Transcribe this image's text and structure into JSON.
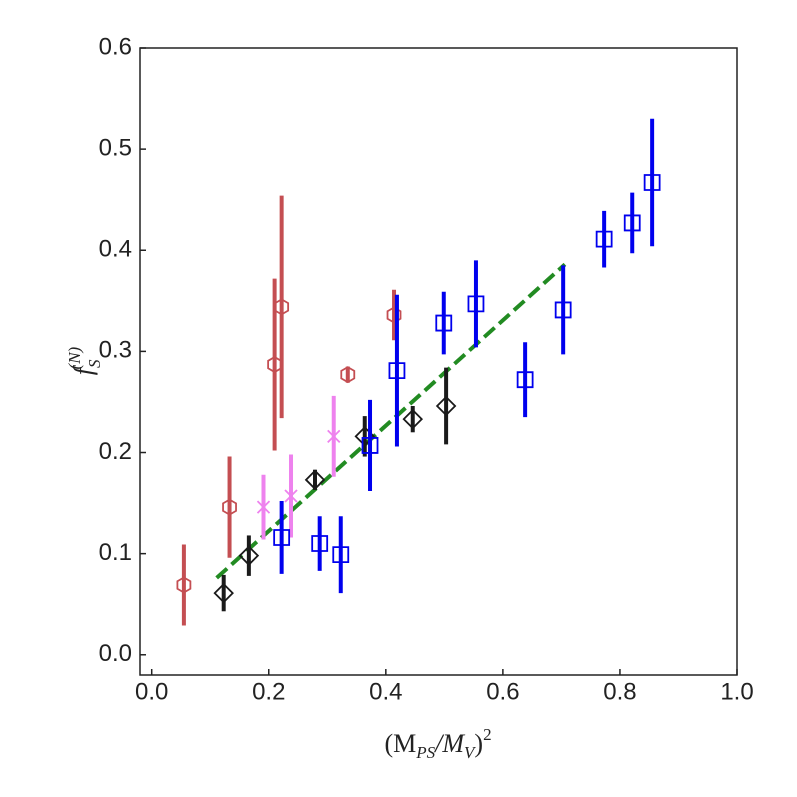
{
  "chart_data": {
    "type": "scatter",
    "xlabel": [
      "(M",
      "PS",
      "/M",
      "V",
      ")",
      "2"
    ],
    "ylabel": [
      "f",
      "S",
      "(N)"
    ],
    "xlim": [
      -0.02,
      1.0
    ],
    "ylim": [
      -0.02,
      0.6
    ],
    "xticks": [
      {
        "value": 0,
        "label": "0.0"
      },
      0.2,
      0.4,
      0.6,
      0.8,
      {
        "value": 1,
        "label": "1.0"
      }
    ],
    "yticks": [
      {
        "value": 0,
        "label": "0.0"
      },
      0.1,
      0.2,
      0.3,
      0.4,
      0.5,
      0.6
    ],
    "series": [
      {
        "marker": "hexagon",
        "color": "#c44e52",
        "x": [
          0.055,
          0.133,
          0.21,
          0.222,
          0.335,
          0.414
        ],
        "values": [
          0.069,
          0.146,
          0.287,
          0.344,
          0.277,
          0.336
        ],
        "errors": [
          0.04,
          0.05,
          0.085,
          0.11,
          0.008,
          0.025
        ]
      },
      {
        "marker": "x",
        "color": "#ee82ee",
        "x": [
          0.191,
          0.238,
          0.311
        ],
        "values": [
          0.146,
          0.157,
          0.216
        ],
        "errors": [
          0.032,
          0.041,
          0.04
        ]
      },
      {
        "marker": "diamond",
        "color": "#1a1a1a",
        "x": [
          0.123,
          0.166,
          0.279,
          0.364,
          0.446,
          0.503
        ],
        "values": [
          0.061,
          0.098,
          0.173,
          0.216,
          0.233,
          0.246
        ],
        "errors": [
          0.018,
          0.02,
          0.01,
          0.02,
          0.013,
          0.038
        ]
      },
      {
        "marker": "square",
        "color": "#0000ee",
        "x": [
          0.222,
          0.287,
          0.323,
          0.373,
          0.419,
          0.499,
          0.554,
          0.638,
          0.703,
          0.773,
          0.821,
          0.855
        ],
        "values": [
          0.116,
          0.11,
          0.099,
          0.207,
          0.281,
          0.328,
          0.347,
          0.272,
          0.341,
          0.411,
          0.427,
          0.467
        ],
        "errors": [
          0.036,
          0.027,
          0.038,
          0.045,
          0.075,
          0.031,
          0.043,
          0.037,
          0.044,
          0.028,
          0.03,
          0.063
        ]
      }
    ],
    "fit": {
      "color": "#228b22",
      "style": "dashed",
      "x": [
        0.111,
        0.706
      ],
      "values": [
        0.076,
        0.386
      ]
    }
  }
}
